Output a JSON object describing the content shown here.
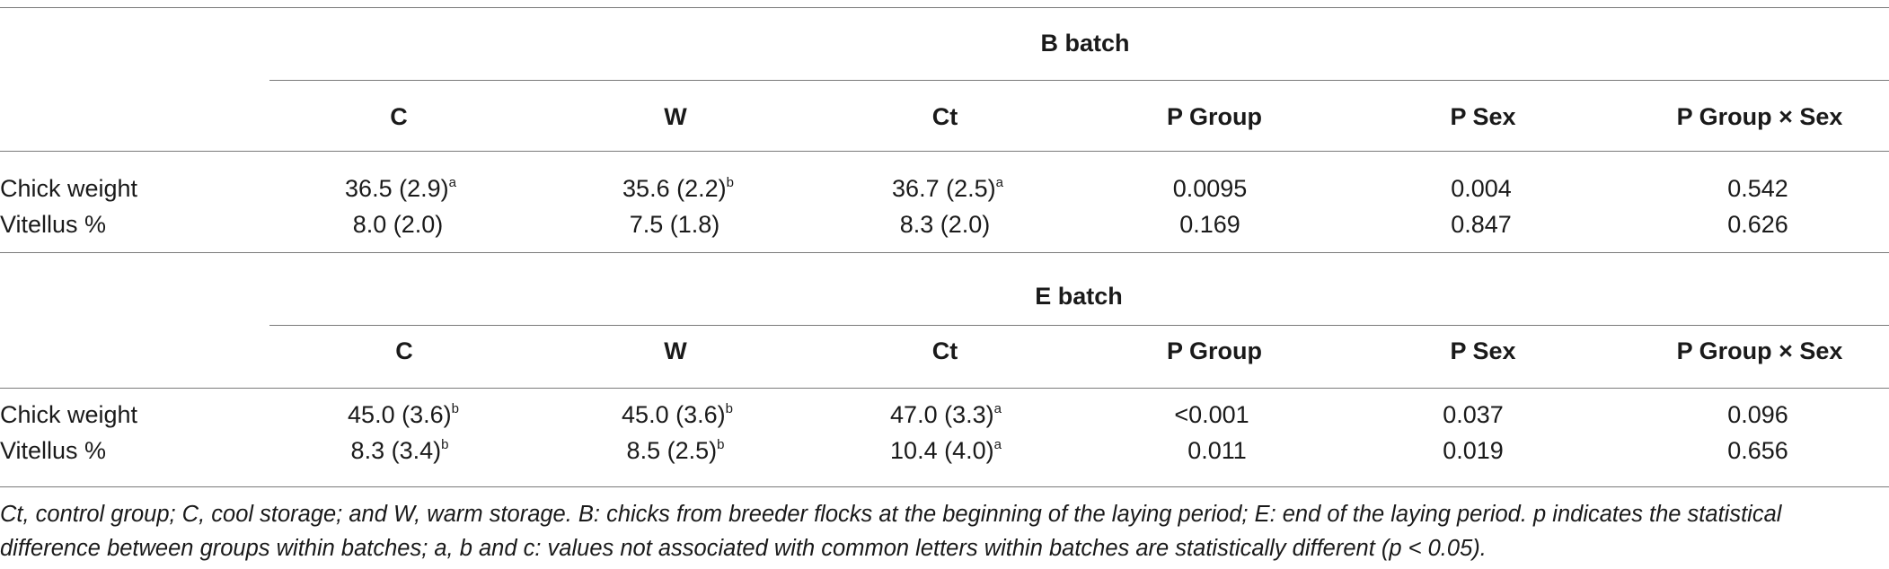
{
  "columns": [
    "C",
    "W",
    "Ct",
    "P Group",
    "P Sex",
    "P Group × Sex"
  ],
  "sections": [
    {
      "title": "B batch",
      "rows": [
        {
          "label": "Chick weight",
          "cells": [
            {
              "v": "36.5 (2.9)",
              "sup": "a"
            },
            {
              "v": "35.6 (2.2)",
              "sup": "b"
            },
            {
              "v": "36.7 (2.5)",
              "sup": "a"
            },
            {
              "v": "0.0095",
              "sup": ""
            },
            {
              "v": "0.004",
              "sup": ""
            },
            {
              "v": "0.542",
              "sup": ""
            }
          ]
        },
        {
          "label": "Vitellus %",
          "cells": [
            {
              "v": "8.0 (2.0)",
              "sup": ""
            },
            {
              "v": "7.5 (1.8)",
              "sup": ""
            },
            {
              "v": "8.3 (2.0)",
              "sup": ""
            },
            {
              "v": "0.169",
              "sup": ""
            },
            {
              "v": "0.847",
              "sup": ""
            },
            {
              "v": "0.626",
              "sup": ""
            }
          ]
        }
      ]
    },
    {
      "title": "E batch",
      "rows": [
        {
          "label": "Chick weight",
          "cells": [
            {
              "v": "45.0 (3.6)",
              "sup": "b"
            },
            {
              "v": "45.0 (3.6)",
              "sup": "b"
            },
            {
              "v": "47.0 (3.3)",
              "sup": "a"
            },
            {
              "v": "<0.001",
              "sup": ""
            },
            {
              "v": "0.037",
              "sup": ""
            },
            {
              "v": "0.096",
              "sup": ""
            }
          ]
        },
        {
          "label": "Vitellus %",
          "cells": [
            {
              "v": "8.3 (3.4)",
              "sup": "b"
            },
            {
              "v": "8.5 (2.5)",
              "sup": "b"
            },
            {
              "v": "10.4 (4.0)",
              "sup": "a"
            },
            {
              "v": "0.011",
              "sup": ""
            },
            {
              "v": "0.019",
              "sup": ""
            },
            {
              "v": "0.656",
              "sup": ""
            }
          ]
        }
      ]
    }
  ],
  "footnote": "Ct, control group; C, cool storage; and W, warm storage. B: chicks from breeder flocks at the beginning of the laying period; E: end of the laying period. p indicates the statistical difference between groups within batches; a, b and c: values not associated with common letters within batches are statistically different (p < 0.05)."
}
